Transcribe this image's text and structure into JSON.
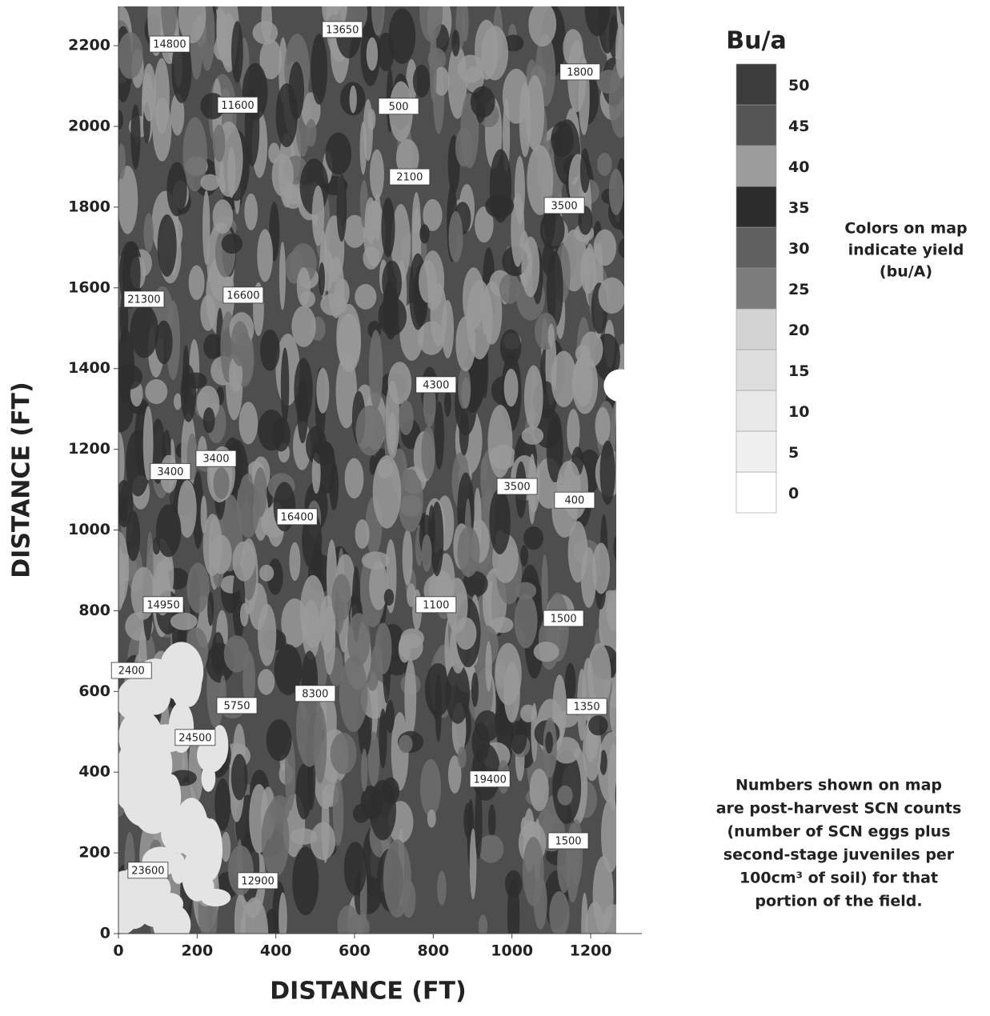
{
  "chart_data": {
    "type": "yield-map",
    "xlabel": "DISTANCE (FT)",
    "ylabel": "DISTANCE (FT)",
    "xlim": [
      0,
      1330
    ],
    "ylim": [
      0,
      2300
    ],
    "xticks": [
      0,
      200,
      400,
      600,
      800,
      1000,
      1200
    ],
    "yticks": [
      0,
      200,
      400,
      600,
      800,
      1000,
      1200,
      1400,
      1600,
      1800,
      2000,
      2200
    ],
    "labels": [
      {
        "x": 130,
        "y": 2204,
        "value": 14800
      },
      {
        "x": 569,
        "y": 2240,
        "value": 13650
      },
      {
        "x": 1173,
        "y": 2135,
        "value": 1800
      },
      {
        "x": 303,
        "y": 2053,
        "value": 11600
      },
      {
        "x": 712,
        "y": 2050,
        "value": 500
      },
      {
        "x": 740,
        "y": 1875,
        "value": 2100
      },
      {
        "x": 1133,
        "y": 1804,
        "value": 3500
      },
      {
        "x": 65,
        "y": 1572,
        "value": 21300
      },
      {
        "x": 317,
        "y": 1582,
        "value": 16600
      },
      {
        "x": 807,
        "y": 1360,
        "value": 4300
      },
      {
        "x": 132,
        "y": 1145,
        "value": 3400
      },
      {
        "x": 248,
        "y": 1177,
        "value": 3400
      },
      {
        "x": 1013,
        "y": 1108,
        "value": 3500
      },
      {
        "x": 1159,
        "y": 1074,
        "value": 400
      },
      {
        "x": 454,
        "y": 1033,
        "value": 16400
      },
      {
        "x": 114,
        "y": 815,
        "value": 14950
      },
      {
        "x": 807,
        "y": 815,
        "value": 1100
      },
      {
        "x": 1131,
        "y": 781,
        "value": 1500
      },
      {
        "x": 33,
        "y": 652,
        "value": 2400
      },
      {
        "x": 301,
        "y": 565,
        "value": 5750
      },
      {
        "x": 500,
        "y": 595,
        "value": 8300
      },
      {
        "x": 1190,
        "y": 563,
        "value": 1350
      },
      {
        "x": 195,
        "y": 486,
        "value": 24500
      },
      {
        "x": 944,
        "y": 383,
        "value": 19400
      },
      {
        "x": 1143,
        "y": 230,
        "value": 1500
      },
      {
        "x": 75,
        "y": 157,
        "value": 23600
      },
      {
        "x": 354,
        "y": 131,
        "value": 12900
      }
    ],
    "legend": {
      "title": "Bu/a",
      "levels": [
        0,
        5,
        10,
        15,
        20,
        25,
        30,
        35,
        40,
        45,
        50
      ],
      "colors": [
        "#ffffff",
        "#f0f0f0",
        "#e8e8e8",
        "#dedede",
        "#d2d2d2",
        "#7c7c7c",
        "#606060",
        "#2c2c2c",
        "#9c9c9c",
        "#555555",
        "#3c3c3c"
      ]
    },
    "note_colors": [
      "Colors on map",
      "indicate yield",
      "(bu/A)"
    ],
    "note_numbers": [
      "Numbers shown on map",
      "are post-harvest SCN counts",
      "(number of SCN eggs plus",
      "second-stage juveniles per",
      "100cm³ of soil) for that",
      "portion of the field."
    ]
  }
}
